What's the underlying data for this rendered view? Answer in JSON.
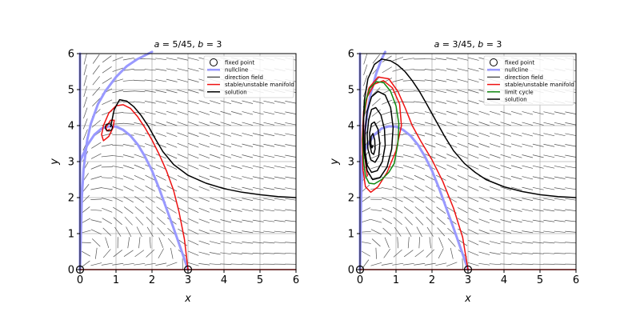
{
  "chart_data": [
    {
      "type": "line",
      "title": "a = 5/45,  b = 3",
      "title_html": {
        "a": "a",
        "a_val": " = 5/45,  ",
        "b": "b",
        "b_val": " = 3"
      },
      "xlabel": "x",
      "ylabel": "y",
      "xlim": [
        0,
        6
      ],
      "ylim": [
        0,
        6
      ],
      "xticks": [
        "0",
        "1",
        "2",
        "3",
        "4",
        "5",
        "6"
      ],
      "yticks": [
        "0",
        "1",
        "2",
        "3",
        "4",
        "5",
        "6"
      ],
      "grid": true,
      "legend_position": "top-right",
      "legend": [
        {
          "label": "fixed point",
          "kind": "marker",
          "color": "#000000"
        },
        {
          "label": "nullcline",
          "kind": "line",
          "color": "#9999ff"
        },
        {
          "label": "direction field",
          "kind": "line",
          "color": "#555555"
        },
        {
          "label": "stable/unstable manifold",
          "kind": "line",
          "color": "#ee1111"
        },
        {
          "label": "solution",
          "kind": "line",
          "color": "#000000"
        }
      ],
      "fixed_points": [
        [
          0,
          0
        ],
        [
          3,
          0
        ],
        [
          0.8,
          3.95
        ]
      ],
      "series": [
        {
          "name": "nullcline",
          "color": "#9999ff",
          "width": 3,
          "x": [
            0,
            0.2,
            0.4,
            0.6,
            0.8,
            1.0,
            1.2,
            1.4,
            1.6,
            1.8,
            2.0,
            2.2,
            2.4,
            2.6,
            2.8,
            3.0
          ],
          "y": [
            3.0,
            3.45,
            3.75,
            3.92,
            3.98,
            3.97,
            3.88,
            3.72,
            3.48,
            3.15,
            2.75,
            2.25,
            1.7,
            1.15,
            0.58,
            0
          ]
        },
        {
          "name": "nullcline",
          "color": "#9999ff",
          "width": 3,
          "x": [
            0,
            0.05,
            0.1,
            0.2,
            0.3,
            0.5,
            0.7,
            1.0,
            1.3,
            1.6,
            2.0
          ],
          "y": [
            0,
            2.0,
            2.8,
            3.6,
            4.05,
            4.6,
            4.95,
            5.35,
            5.65,
            5.85,
            6.05
          ]
        },
        {
          "name": "nullcline",
          "color": "#9999ff",
          "width": 3,
          "x": [
            0,
            0
          ],
          "y": [
            0,
            6
          ]
        },
        {
          "name": "stable/unstable manifold",
          "color": "#ee1111",
          "width": 1.5,
          "x": [
            3.0,
            2.9,
            2.75,
            2.6,
            2.4,
            2.2,
            2.0,
            1.8,
            1.6,
            1.4,
            1.2,
            1.0,
            0.8,
            0.65,
            0.6,
            0.65,
            0.8,
            0.92,
            0.95,
            0.85,
            0.72,
            0.75,
            0.82
          ],
          "y": [
            0,
            0.85,
            1.6,
            2.2,
            2.75,
            3.2,
            3.6,
            3.95,
            4.25,
            4.48,
            4.58,
            4.55,
            4.35,
            4.0,
            3.75,
            3.58,
            3.7,
            3.95,
            4.15,
            4.15,
            3.95,
            3.85,
            3.9
          ]
        },
        {
          "name": "stable/unstable manifold",
          "color": "#ee1111",
          "width": 1.5,
          "x": [
            0,
            6
          ],
          "y": [
            0,
            0
          ]
        },
        {
          "name": "solution",
          "color": "#000000",
          "width": 1.5,
          "x": [
            0.85,
            0.95,
            1.1,
            1.3,
            1.5,
            1.7,
            1.9,
            2.1,
            2.3,
            2.6,
            3.0,
            3.5,
            4.0,
            4.5,
            5.0,
            5.5,
            6.0
          ],
          "y": [
            3.97,
            4.45,
            4.72,
            4.68,
            4.52,
            4.28,
            3.98,
            3.62,
            3.28,
            2.92,
            2.62,
            2.4,
            2.25,
            2.15,
            2.08,
            2.03,
            2.0
          ]
        }
      ]
    },
    {
      "type": "line",
      "title": "a = 3/45,  b = 3",
      "title_html": {
        "a": "a",
        "a_val": " = 3/45,  ",
        "b": "b",
        "b_val": " = 3"
      },
      "xlabel": "x",
      "ylabel": "y",
      "xlim": [
        0,
        6
      ],
      "ylim": [
        0,
        6
      ],
      "xticks": [
        "0",
        "1",
        "2",
        "3",
        "4",
        "5",
        "6"
      ],
      "yticks": [
        "0",
        "1",
        "2",
        "3",
        "4",
        "5",
        "6"
      ],
      "grid": true,
      "legend_position": "top-right",
      "legend": [
        {
          "label": "fixed point",
          "kind": "marker",
          "color": "#000000"
        },
        {
          "label": "nullcline",
          "kind": "line",
          "color": "#9999ff"
        },
        {
          "label": "direction field",
          "kind": "line",
          "color": "#555555"
        },
        {
          "label": "stable/unstable manifold",
          "kind": "line",
          "color": "#ee1111"
        },
        {
          "label": "limit cycle",
          "kind": "line",
          "color": "#118811"
        },
        {
          "label": "solution",
          "kind": "line",
          "color": "#000000"
        }
      ],
      "fixed_points": [
        [
          0,
          0
        ],
        [
          3,
          0
        ]
      ],
      "series": [
        {
          "name": "nullcline",
          "color": "#9999ff",
          "width": 3,
          "x": [
            0,
            0.2,
            0.4,
            0.6,
            0.8,
            1.0,
            1.2,
            1.4,
            1.6,
            1.8,
            2.0,
            2.2,
            2.4,
            2.6,
            2.8,
            3.0
          ],
          "y": [
            3.0,
            3.45,
            3.75,
            3.92,
            3.98,
            3.97,
            3.88,
            3.72,
            3.48,
            3.15,
            2.75,
            2.25,
            1.7,
            1.15,
            0.58,
            0
          ]
        },
        {
          "name": "nullcline",
          "color": "#9999ff",
          "width": 3,
          "x": [
            0,
            0.03,
            0.07,
            0.12,
            0.2,
            0.3,
            0.45,
            0.6,
            0.7
          ],
          "y": [
            0,
            2.0,
            3.0,
            3.7,
            4.35,
            4.9,
            5.45,
            5.85,
            6.05
          ]
        },
        {
          "name": "nullcline",
          "color": "#9999ff",
          "width": 3,
          "x": [
            0,
            0
          ],
          "y": [
            0,
            6
          ]
        },
        {
          "name": "stable/unstable manifold",
          "color": "#ee1111",
          "width": 1.5,
          "x": [
            3.0,
            2.85,
            2.6,
            2.3,
            2.0,
            1.7,
            1.45,
            1.25,
            1.05,
            0.8,
            0.5,
            0.25,
            0.1,
            0.06,
            0.08,
            0.15,
            0.3,
            0.5,
            0.75,
            1.0,
            1.15,
            1.1,
            0.9,
            0.65,
            0.4,
            0.2,
            0.1,
            0.1,
            0.2
          ],
          "y": [
            0,
            0.9,
            1.7,
            2.45,
            3.05,
            3.55,
            4.0,
            4.5,
            4.95,
            5.3,
            5.35,
            5.05,
            4.4,
            3.6,
            2.8,
            2.3,
            2.15,
            2.3,
            2.7,
            3.3,
            4.0,
            4.6,
            5.05,
            5.25,
            5.15,
            4.8,
            4.2,
            3.4,
            2.6
          ]
        },
        {
          "name": "stable/unstable manifold",
          "color": "#ee1111",
          "width": 1.5,
          "x": [
            0,
            6
          ],
          "y": [
            0,
            0
          ]
        },
        {
          "name": "limit cycle",
          "color": "#118811",
          "width": 1.5,
          "x": [
            0.95,
            1.05,
            1.08,
            1.0,
            0.85,
            0.65,
            0.45,
            0.28,
            0.16,
            0.1,
            0.08,
            0.1,
            0.15,
            0.25,
            0.4,
            0.6,
            0.8,
            0.95
          ],
          "y": [
            2.95,
            3.5,
            4.05,
            4.55,
            4.95,
            5.2,
            5.22,
            5.05,
            4.7,
            4.2,
            3.6,
            3.0,
            2.6,
            2.4,
            2.38,
            2.5,
            2.7,
            2.95
          ]
        },
        {
          "name": "solution",
          "color": "#000000",
          "width": 1.5,
          "x": [
            0.6,
            0.85,
            1.05,
            1.25,
            1.45,
            1.65,
            1.85,
            2.1,
            2.35,
            2.6,
            2.9,
            3.2,
            3.5,
            4.0,
            4.5,
            5.0,
            5.5,
            6.0
          ],
          "y": [
            5.85,
            5.8,
            5.68,
            5.5,
            5.25,
            4.95,
            4.6,
            4.15,
            3.7,
            3.3,
            2.95,
            2.7,
            2.5,
            2.3,
            2.17,
            2.08,
            2.03,
            2.0
          ]
        },
        {
          "name": "solution",
          "color": "#000000",
          "width": 1.5,
          "x": [
            0.6,
            0.4,
            0.22,
            0.12,
            0.09,
            0.11,
            0.2,
            0.35,
            0.55,
            0.75,
            0.88,
            0.92,
            0.85,
            0.7,
            0.5,
            0.32,
            0.2,
            0.14,
            0.14,
            0.2,
            0.32,
            0.48,
            0.62,
            0.7,
            0.68,
            0.58,
            0.44,
            0.32,
            0.24,
            0.2,
            0.22,
            0.3,
            0.42,
            0.52,
            0.55,
            0.5,
            0.4,
            0.32,
            0.27,
            0.27,
            0.32,
            0.38,
            0.42,
            0.41,
            0.36,
            0.31,
            0.3,
            0.33,
            0.36
          ],
          "y": [
            5.85,
            5.7,
            5.3,
            4.7,
            4.0,
            3.3,
            2.75,
            2.5,
            2.55,
            2.85,
            3.35,
            3.95,
            4.5,
            4.85,
            4.95,
            4.8,
            4.4,
            3.85,
            3.3,
            2.9,
            2.7,
            2.75,
            3.0,
            3.45,
            3.9,
            4.3,
            4.5,
            4.45,
            4.15,
            3.75,
            3.35,
            3.05,
            2.98,
            3.15,
            3.5,
            3.9,
            4.1,
            4.05,
            3.8,
            3.5,
            3.25,
            3.2,
            3.35,
            3.6,
            3.78,
            3.7,
            3.5,
            3.38,
            3.45
          ]
        }
      ]
    }
  ]
}
